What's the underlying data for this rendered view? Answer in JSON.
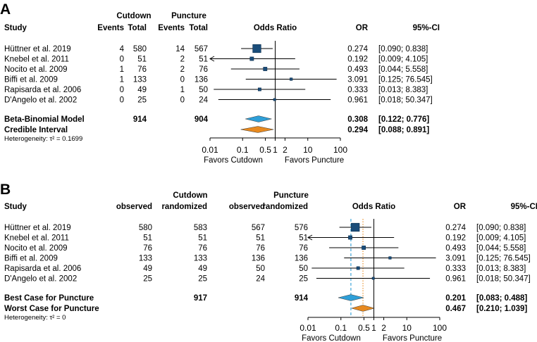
{
  "chart_data": [
    {
      "type": "forest",
      "panel_label": "A",
      "headers": {
        "study": "Study",
        "group1": "Cutdown",
        "group2": "Puncture",
        "cols": [
          "Events",
          "Total",
          "Events",
          "Total"
        ],
        "plot_title": "Odds Ratio",
        "or": "OR",
        "ci": "95%-CI"
      },
      "studies": [
        {
          "name": "Hüttner et al. 2019",
          "c": [
            "4",
            "580",
            "14",
            "567"
          ],
          "or": 0.274,
          "lo": 0.09,
          "hi": 0.838,
          "weight": 3.0,
          "or_text": "0.274",
          "ci_text": "[0.090;  0.838]"
        },
        {
          "name": "Knebel et al. 2011",
          "c": [
            "0",
            "51",
            "2",
            "51"
          ],
          "or": 0.192,
          "lo": 0.009,
          "hi": 4.105,
          "weight": 1.0,
          "or_text": "0.192",
          "ci_text": "[0.009;  4.105]"
        },
        {
          "name": "Nocito et al. 2009",
          "c": [
            "1",
            "76",
            "2",
            "76"
          ],
          "or": 0.493,
          "lo": 0.044,
          "hi": 5.558,
          "weight": 1.0,
          "or_text": "0.493",
          "ci_text": "[0.044;  5.558]"
        },
        {
          "name": "Biffi et al. 2009",
          "c": [
            "1",
            "133",
            "0",
            "136"
          ],
          "or": 3.091,
          "lo": 0.125,
          "hi": 76.545,
          "weight": 0.5,
          "or_text": "3.091",
          "ci_text": "[0.125; 76.545]"
        },
        {
          "name": "Rapisarda et al. 2006",
          "c": [
            "0",
            "49",
            "1",
            "50"
          ],
          "or": 0.333,
          "lo": 0.013,
          "hi": 8.383,
          "weight": 0.7,
          "or_text": "0.333",
          "ci_text": "[0.013;  8.383]"
        },
        {
          "name": "D'Angelo et al. 2002",
          "c": [
            "0",
            "25",
            "0",
            "24"
          ],
          "or": 0.961,
          "lo": 0.018,
          "hi": 50.347,
          "weight": 0.4,
          "or_text": "0.961",
          "ci_text": "[0.018; 50.347]"
        }
      ],
      "summaries": [
        {
          "name": "Beta-Binomial Model",
          "c": [
            "",
            "914",
            "",
            "904"
          ],
          "or": 0.308,
          "lo": 0.122,
          "hi": 0.776,
          "color": "#2e9fd8",
          "line_style": "none",
          "or_text": "0.308",
          "ci_text": "[0.122;  0.776]"
        },
        {
          "name": "Credible Interval",
          "c": [
            "",
            "",
            "",
            ""
          ],
          "or": 0.294,
          "lo": 0.088,
          "hi": 0.891,
          "color": "#e7891f",
          "line_style": "none",
          "or_text": "0.294",
          "ci_text": "[0.088;  0.891]"
        }
      ],
      "heterogeneity": "Heterogeneity: τ² = 0.1699",
      "axis": {
        "ticks": [
          0.01,
          0.1,
          0.5,
          1,
          2,
          10,
          100
        ],
        "tick_labels": [
          "0.01",
          "0.1",
          "0.5",
          "1",
          "2",
          "10",
          "100"
        ],
        "scale": "log10",
        "range": [
          0.01,
          100
        ]
      },
      "favors_left": "Favors Cutdown",
      "favors_right": "Favors Puncture"
    },
    {
      "type": "forest",
      "panel_label": "B",
      "headers": {
        "study": "Study",
        "group1": "Cutdown",
        "group2": "Puncture",
        "cols": [
          "observed",
          "randomized",
          "observed",
          "randomized"
        ],
        "plot_title": "Odds Ratio",
        "or": "OR",
        "ci": "95%-CI"
      },
      "studies": [
        {
          "name": "Hüttner et al. 2019",
          "c": [
            "580",
            "583",
            "567",
            "576"
          ],
          "or": 0.274,
          "lo": 0.09,
          "hi": 0.838,
          "weight": 3.0,
          "or_text": "0.274",
          "ci_text": "[0.090;  0.838]"
        },
        {
          "name": "Knebel et al. 2011",
          "c": [
            "51",
            "51",
            "51",
            "51"
          ],
          "or": 0.192,
          "lo": 0.009,
          "hi": 4.105,
          "weight": 1.0,
          "or_text": "0.192",
          "ci_text": "[0.009;  4.105]"
        },
        {
          "name": "Nocito et al. 2009",
          "c": [
            "76",
            "76",
            "76",
            "76"
          ],
          "or": 0.493,
          "lo": 0.044,
          "hi": 5.558,
          "weight": 1.0,
          "or_text": "0.493",
          "ci_text": "[0.044;  5.558]"
        },
        {
          "name": "Biffi et al. 2009",
          "c": [
            "133",
            "133",
            "136",
            "136"
          ],
          "or": 3.091,
          "lo": 0.125,
          "hi": 76.545,
          "weight": 0.5,
          "or_text": "3.091",
          "ci_text": "[0.125; 76.545]"
        },
        {
          "name": "Rapisarda et al. 2006",
          "c": [
            "49",
            "49",
            "50",
            "50"
          ],
          "or": 0.333,
          "lo": 0.013,
          "hi": 8.383,
          "weight": 0.7,
          "or_text": "0.333",
          "ci_text": "[0.013;  8.383]"
        },
        {
          "name": "D'Angelo et al. 2002",
          "c": [
            "25",
            "25",
            "24",
            "25"
          ],
          "or": 0.961,
          "lo": 0.018,
          "hi": 50.347,
          "weight": 0.4,
          "or_text": "0.961",
          "ci_text": "[0.018; 50.347]"
        }
      ],
      "summaries": [
        {
          "name": "Best Case for Puncture",
          "c": [
            "",
            "917",
            "",
            "914"
          ],
          "or": 0.201,
          "lo": 0.083,
          "hi": 0.488,
          "color": "#2e9fd8",
          "line_style": "dashed",
          "or_text": "0.201",
          "ci_text": "[0.083;  0.488]"
        },
        {
          "name": "Worst Case for Puncture",
          "c": [
            "",
            "",
            "",
            ""
          ],
          "or": 0.467,
          "lo": 0.21,
          "hi": 1.039,
          "color": "#e7891f",
          "line_style": "dotted",
          "or_text": "0.467",
          "ci_text": "[0.210;  1.039]"
        }
      ],
      "heterogeneity": "Heterogeneity: τ² = 0",
      "axis": {
        "ticks": [
          0.01,
          0.1,
          0.5,
          1,
          2,
          10,
          100
        ],
        "tick_labels": [
          "0.01",
          "0.1",
          "0.5",
          "1",
          "2",
          "10",
          "100"
        ],
        "scale": "log10",
        "range": [
          0.01,
          100
        ]
      },
      "favors_left": "Favors Cutdown",
      "favors_right": "Favors Puncture"
    }
  ]
}
